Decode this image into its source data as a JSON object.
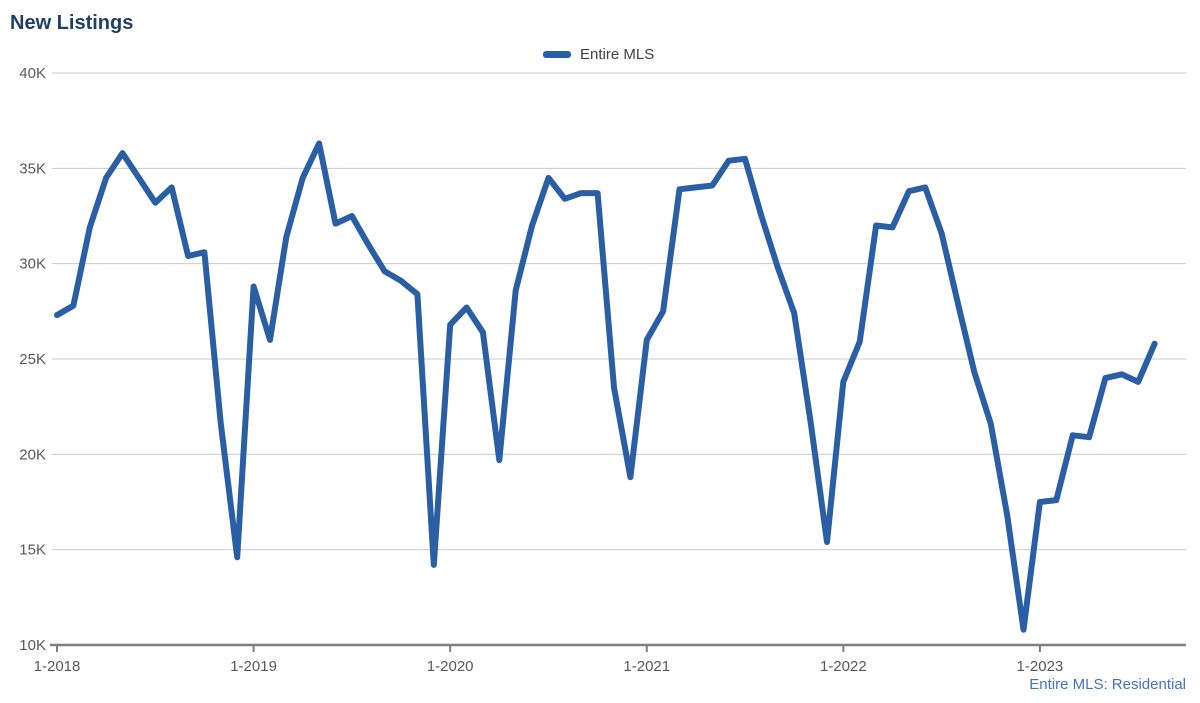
{
  "title": "New Listings",
  "legend": {
    "label": "Entire MLS",
    "swatch_color": "#2B5FA5"
  },
  "footer": "Entire MLS: Residential",
  "colors": {
    "title": "#1F4064",
    "line": "#2B5FA5",
    "axis_labels": "#595959",
    "gridline": "#CBCBCB",
    "axis_line": "#7F7F7F",
    "footer": "#4472C4",
    "legend_text": "#404040"
  },
  "chart_data": {
    "type": "line",
    "title": "New Listings",
    "unit": "new listings per month, values in thousands (K)",
    "ylim": [
      10,
      40
    ],
    "grid": "horizontal",
    "legend_position": "top-center",
    "y_ticks": [
      {
        "value": 40,
        "label": "40K"
      },
      {
        "value": 35,
        "label": "35K"
      },
      {
        "value": 30,
        "label": "30K"
      },
      {
        "value": 25,
        "label": "25K"
      },
      {
        "value": 20,
        "label": "20K"
      },
      {
        "value": 15,
        "label": "15K"
      },
      {
        "value": 10,
        "label": "10K"
      }
    ],
    "x_tick_labels": [
      "1-2018",
      "1-2019",
      "1-2020",
      "1-2021",
      "1-2022",
      "1-2023"
    ],
    "months": [
      "1-2018",
      "2-2018",
      "3-2018",
      "4-2018",
      "5-2018",
      "6-2018",
      "7-2018",
      "8-2018",
      "9-2018",
      "10-2018",
      "11-2018",
      "12-2018",
      "1-2019",
      "2-2019",
      "3-2019",
      "4-2019",
      "5-2019",
      "6-2019",
      "7-2019",
      "8-2019",
      "9-2019",
      "10-2019",
      "11-2019",
      "12-2019",
      "1-2020",
      "2-2020",
      "3-2020",
      "4-2020",
      "5-2020",
      "6-2020",
      "7-2020",
      "8-2020",
      "9-2020",
      "10-2020",
      "11-2020",
      "12-2020",
      "1-2021",
      "2-2021",
      "3-2021",
      "4-2021",
      "5-2021",
      "6-2021",
      "7-2021",
      "8-2021",
      "9-2021",
      "10-2021",
      "11-2021",
      "12-2021",
      "1-2022",
      "2-2022",
      "3-2022",
      "4-2022",
      "5-2022",
      "6-2022",
      "7-2022",
      "8-2022",
      "9-2022",
      "10-2022",
      "11-2022",
      "12-2022",
      "1-2023",
      "2-2023",
      "3-2023",
      "4-2023",
      "5-2023",
      "6-2023",
      "7-2023",
      "8-2023"
    ],
    "series": [
      {
        "name": "Entire MLS",
        "color": "#2B5FA5",
        "values_thousands": [
          27.3,
          27.8,
          31.9,
          34.5,
          35.8,
          34.5,
          33.2,
          34.0,
          30.4,
          30.6,
          21.6,
          14.6,
          28.8,
          26.0,
          31.4,
          34.5,
          36.3,
          32.1,
          32.5,
          31.0,
          29.6,
          29.1,
          28.4,
          14.2,
          26.8,
          27.7,
          26.4,
          19.7,
          28.6,
          32.0,
          34.5,
          33.4,
          33.7,
          33.7,
          23.5,
          18.8,
          26.0,
          27.5,
          33.9,
          34.0,
          34.1,
          35.4,
          35.5,
          32.5,
          29.8,
          27.4,
          21.7,
          15.4,
          23.8,
          25.9,
          32.0,
          31.9,
          33.8,
          34.0,
          31.6,
          27.9,
          24.3,
          21.6,
          16.8,
          10.8,
          17.5,
          17.6,
          21.0,
          20.9,
          24.0,
          24.2,
          23.8,
          25.8
        ]
      }
    ]
  }
}
